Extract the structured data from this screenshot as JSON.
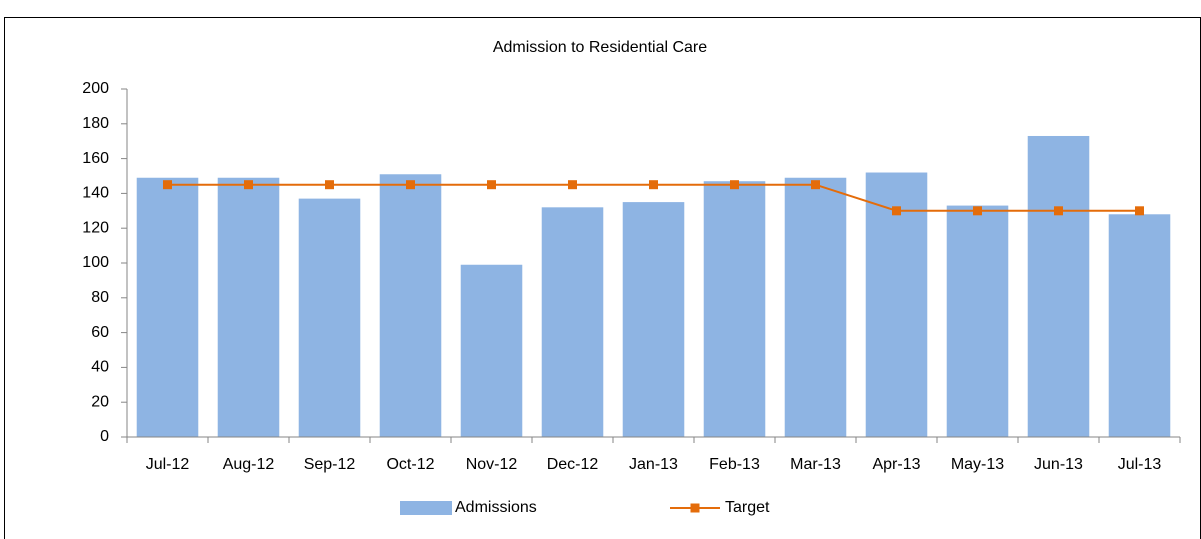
{
  "chart_data": {
    "type": "bar",
    "title": "Admission to Residential Care",
    "categories": [
      "Jul-12",
      "Aug-12",
      "Sep-12",
      "Oct-12",
      "Nov-12",
      "Dec-12",
      "Jan-13",
      "Feb-13",
      "Mar-13",
      "Apr-13",
      "May-13",
      "Jun-13",
      "Jul-13"
    ],
    "series": [
      {
        "name": "Admissions",
        "type": "bar",
        "color": "#8eb4e3",
        "values": [
          149,
          149,
          137,
          151,
          99,
          132,
          135,
          147,
          149,
          152,
          133,
          173,
          128
        ]
      },
      {
        "name": "Target",
        "type": "line",
        "color": "#e46c0a",
        "values": [
          145,
          145,
          145,
          145,
          145,
          145,
          145,
          145,
          145,
          130,
          130,
          130,
          130
        ]
      }
    ],
    "ylim": [
      0,
      200
    ],
    "yticks": [
      0,
      20,
      40,
      60,
      80,
      100,
      120,
      140,
      160,
      180,
      200
    ],
    "grid": false,
    "legend": "bottom"
  }
}
